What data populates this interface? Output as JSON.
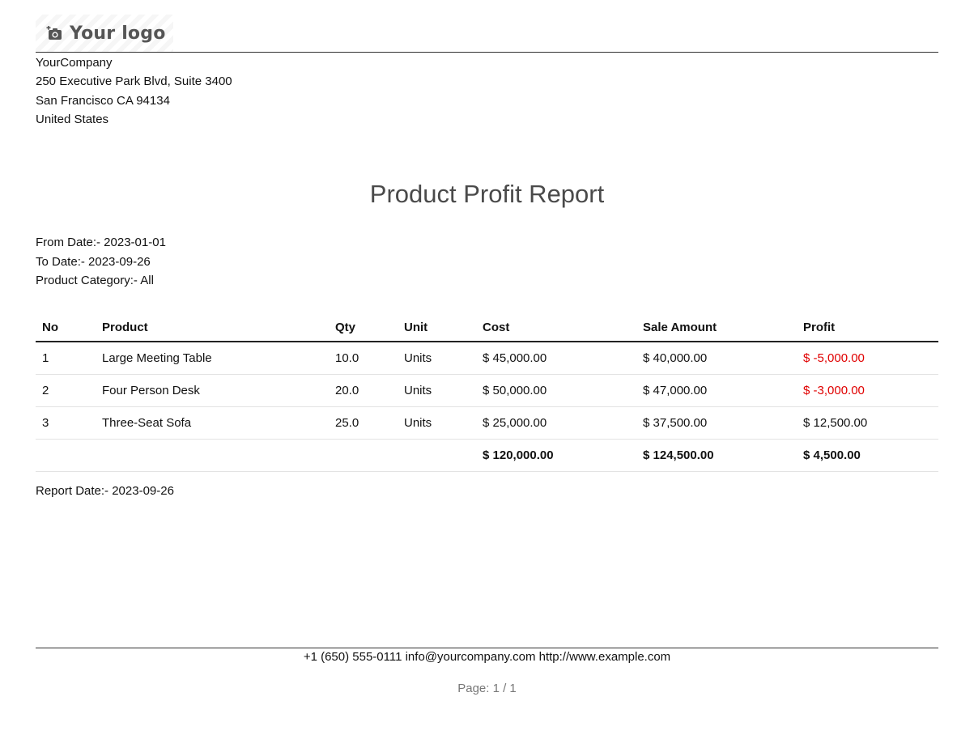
{
  "header": {
    "logo_text": "Your logo",
    "logo_icon": "camera-plus-icon"
  },
  "company": {
    "name": "YourCompany",
    "street": "250 Executive Park Blvd, Suite 3400",
    "city_line": "San Francisco CA 94134",
    "country": "United States"
  },
  "report": {
    "title": "Product Profit Report",
    "from_date": "From Date:- 2023-01-01",
    "to_date": "To Date:- 2023-09-26",
    "category": "Product Category:- All",
    "report_date": "Report Date:- 2023-09-26"
  },
  "table": {
    "headers": {
      "no": "No",
      "product": "Product",
      "qty": "Qty",
      "unit": "Unit",
      "cost": "Cost",
      "sale_amount": "Sale Amount",
      "profit": "Profit"
    },
    "rows": [
      {
        "no": "1",
        "product": "Large Meeting Table",
        "qty": "10.0",
        "unit": "Units",
        "cost": "$ 45,000.00",
        "sale_amount": "$ 40,000.00",
        "profit": "$ -5,000.00",
        "negative": true
      },
      {
        "no": "2",
        "product": "Four Person Desk",
        "qty": "20.0",
        "unit": "Units",
        "cost": "$ 50,000.00",
        "sale_amount": "$ 47,000.00",
        "profit": "$ -3,000.00",
        "negative": true
      },
      {
        "no": "3",
        "product": "Three-Seat Sofa",
        "qty": "25.0",
        "unit": "Units",
        "cost": "$ 25,000.00",
        "sale_amount": "$ 37,500.00",
        "profit": "$ 12,500.00",
        "negative": false
      }
    ],
    "totals": {
      "cost": "$ 120,000.00",
      "sale_amount": "$ 124,500.00",
      "profit": "$ 4,500.00"
    }
  },
  "footer": {
    "contact": "+1 (650) 555-0111 info@yourcompany.com http://www.example.com",
    "page": "Page: 1 / 1"
  },
  "colors": {
    "negative": "#e00000",
    "title": "#4a4a4a",
    "muted": "#777777"
  }
}
